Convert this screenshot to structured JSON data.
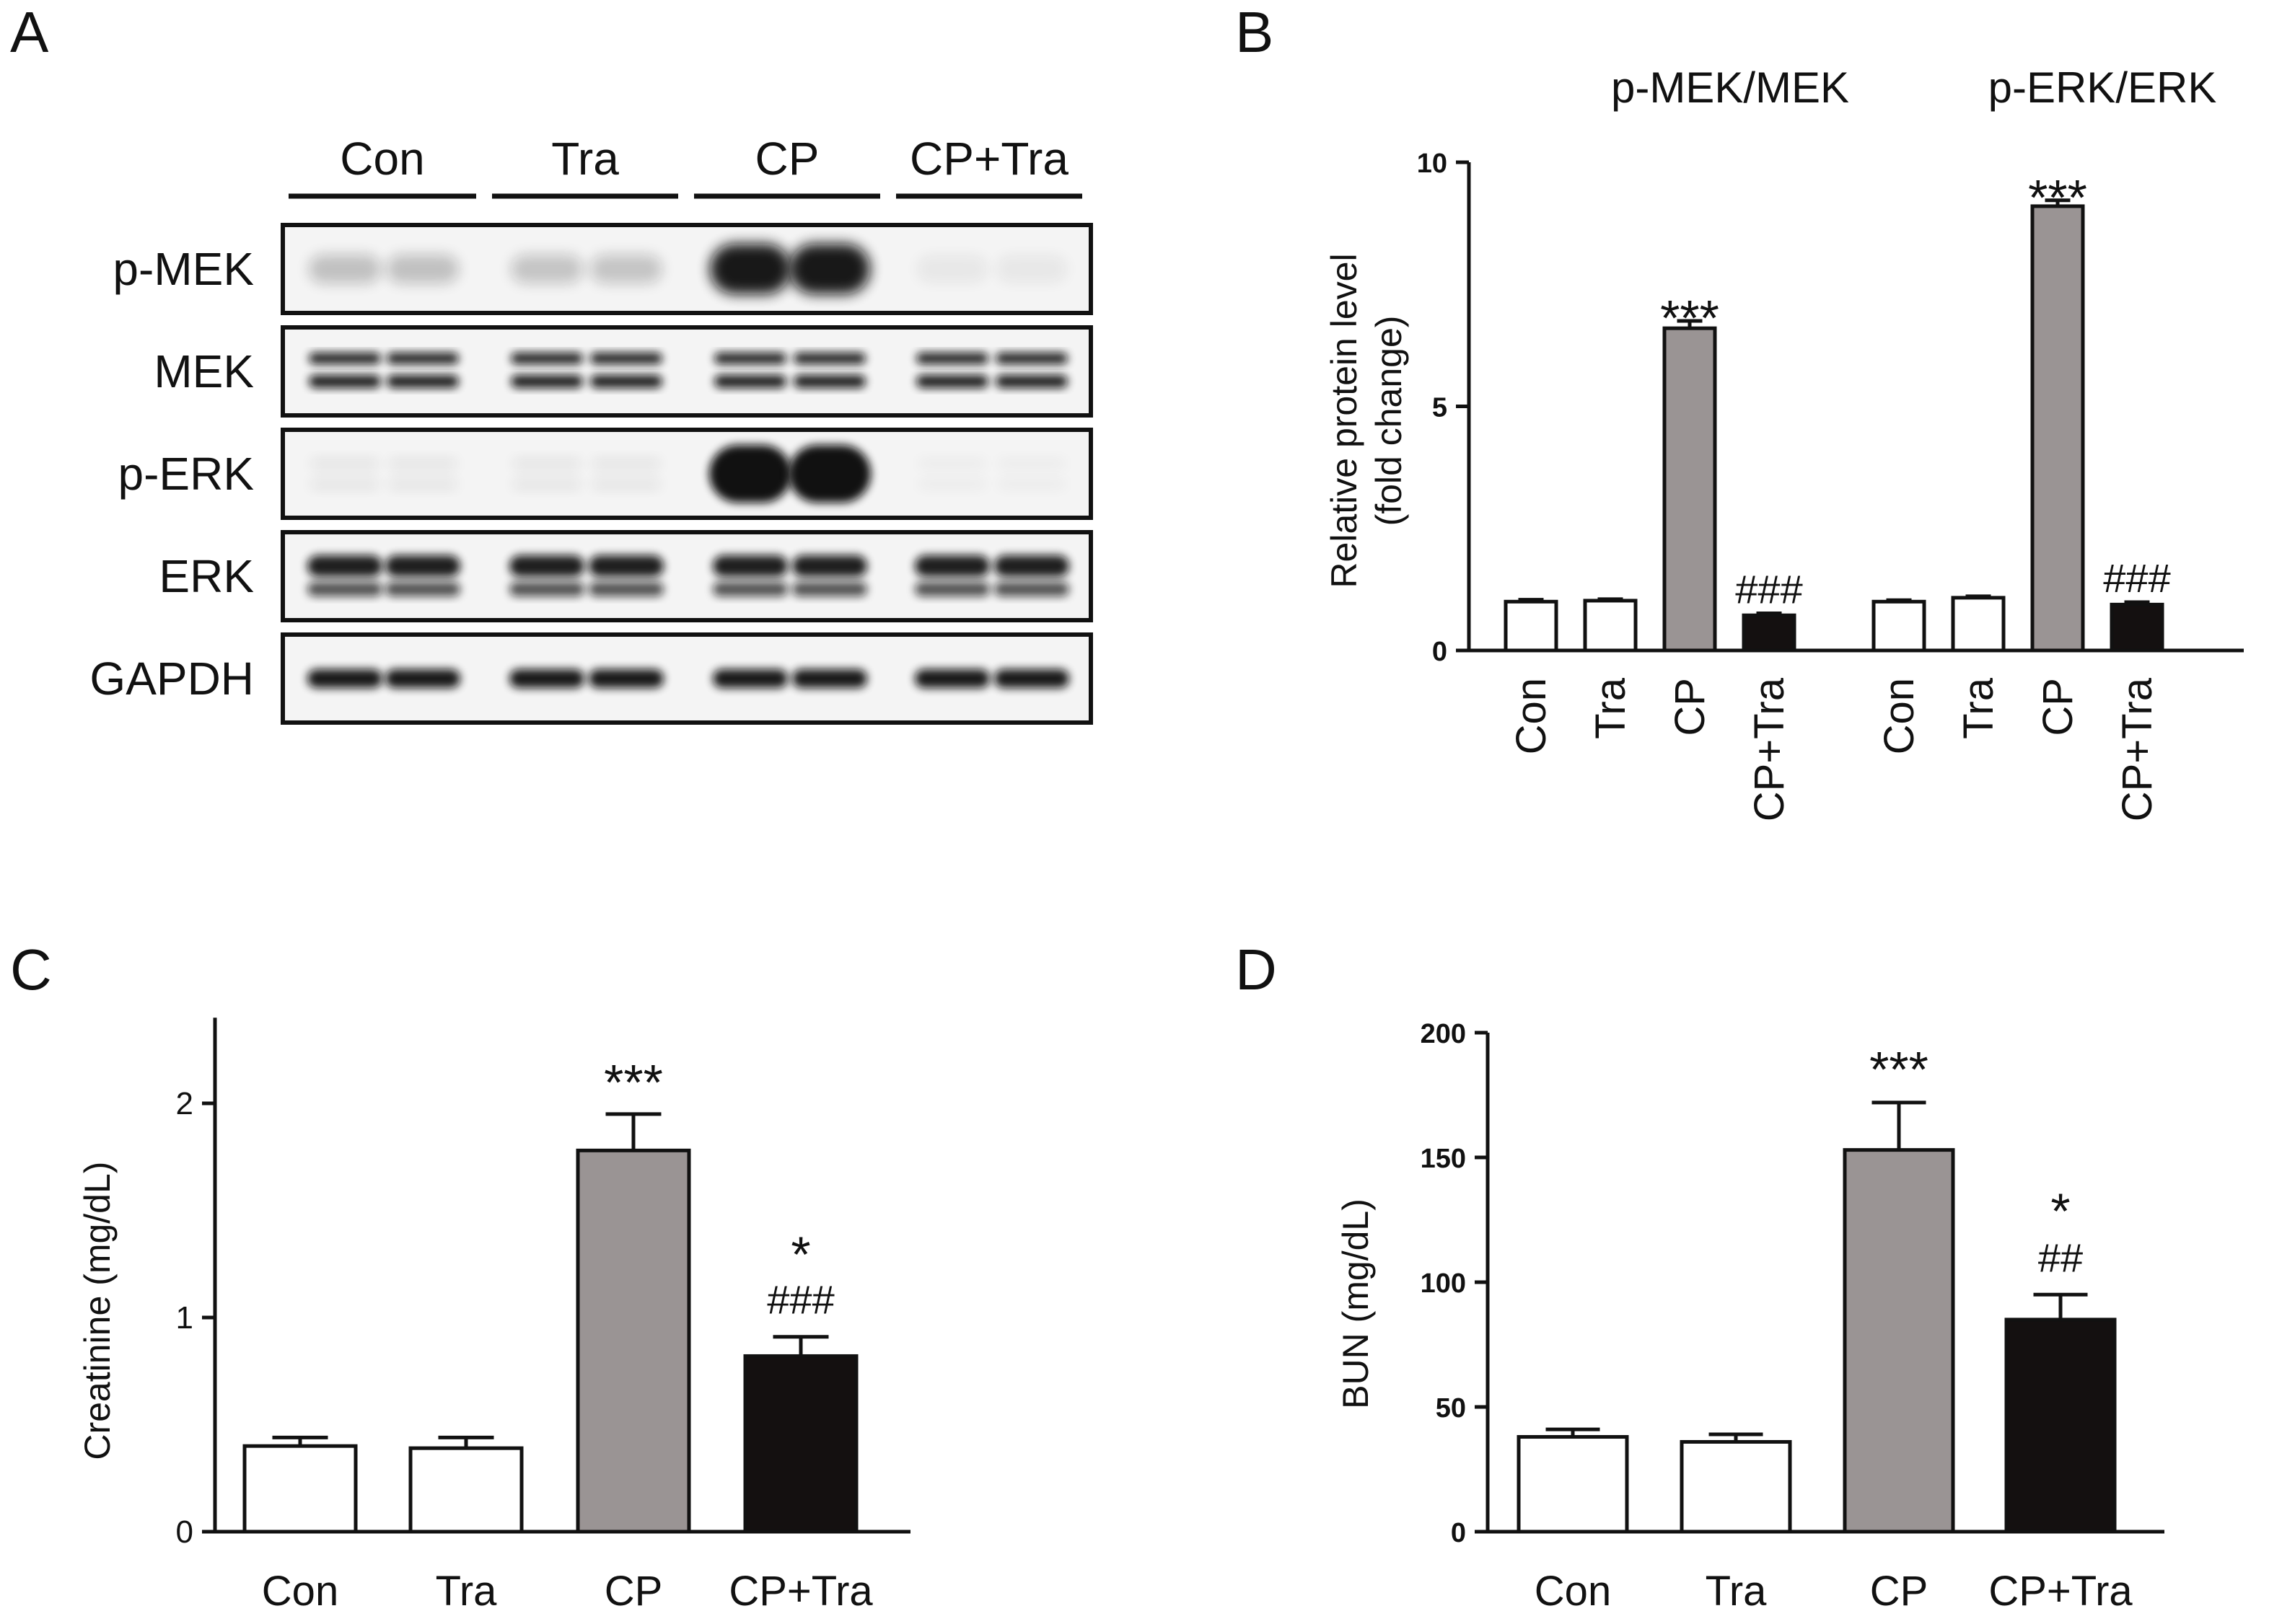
{
  "panels": {
    "A": "A",
    "B": "B",
    "C": "C",
    "D": "D"
  },
  "blot": {
    "groups": [
      "Con",
      "Tra",
      "CP",
      "CP+Tra"
    ],
    "rows": [
      "p-MEK",
      "MEK",
      "p-ERK",
      "ERK",
      "GAPDH"
    ]
  },
  "colors": {
    "Con": "#ffffff",
    "Tra": "#ffffff",
    "CP": "#9a9494",
    "CP+Tra": "#141010",
    "outline": "#111111"
  },
  "chart_data": [
    {
      "id": "B",
      "type": "bar",
      "ylabel": "Relative protein level\n(fold change)",
      "ylim": [
        0,
        10
      ],
      "yticks": [
        0,
        5,
        10
      ],
      "groups": [
        {
          "title": "p-MEK/MEK",
          "categories": [
            "Con",
            "Tra",
            "CP",
            "CP+Tra"
          ],
          "values": [
            1.0,
            1.02,
            6.6,
            0.72
          ],
          "errors": [
            0.04,
            0.03,
            0.15,
            0.04
          ],
          "annotations": [
            "",
            "",
            "***",
            "###"
          ]
        },
        {
          "title": "p-ERK/ERK",
          "categories": [
            "Con",
            "Tra",
            "CP",
            "CP+Tra"
          ],
          "values": [
            1.0,
            1.08,
            9.1,
            0.94
          ],
          "errors": [
            0.03,
            0.03,
            0.12,
            0.05
          ],
          "annotations": [
            "",
            "",
            "***",
            "###"
          ]
        }
      ]
    },
    {
      "id": "C",
      "type": "bar",
      "ylabel": "Creatinine (mg/dL)",
      "ylim": [
        0,
        2.4
      ],
      "yticks": [
        0,
        1,
        2
      ],
      "categories": [
        "Con",
        "Tra",
        "CP",
        "CP+Tra"
      ],
      "values": [
        0.4,
        0.39,
        1.78,
        0.82
      ],
      "errors": [
        0.04,
        0.05,
        0.17,
        0.09
      ],
      "annotations": [
        [],
        [],
        [
          "***"
        ],
        [
          "*",
          "###"
        ]
      ]
    },
    {
      "id": "D",
      "type": "bar",
      "ylabel": "BUN (mg/dL)",
      "ylim": [
        0,
        200
      ],
      "yticks": [
        0,
        50,
        100,
        150,
        200
      ],
      "categories": [
        "Con",
        "Tra",
        "CP",
        "CP+Tra"
      ],
      "values": [
        38,
        36,
        153,
        85
      ],
      "errors": [
        3,
        3,
        19,
        10
      ],
      "annotations": [
        [],
        [],
        [
          "***"
        ],
        [
          "*",
          "##"
        ]
      ]
    }
  ]
}
